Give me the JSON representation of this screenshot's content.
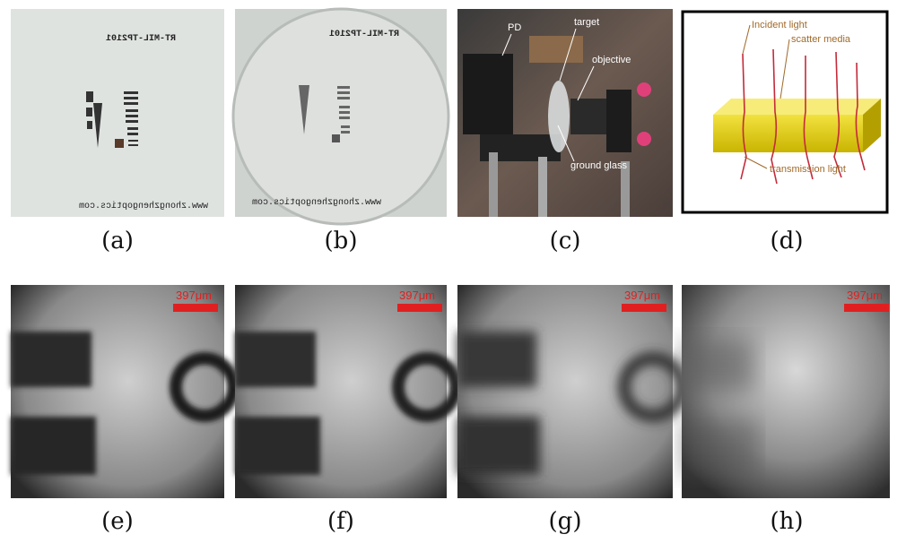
{
  "panels": [
    {
      "label": "(a)",
      "texts": [
        "RT-MIL-TP2101",
        "www.zhongzhengoptics.com"
      ]
    },
    {
      "label": "(b)",
      "texts": [
        "RT-MIL-TP2101",
        "www.zhongzhengoptics.com"
      ]
    },
    {
      "label": "(c)",
      "texts": [
        "PD",
        "target",
        "objective",
        "ground glass"
      ]
    },
    {
      "label": "(d)",
      "texts": [
        "Incident light",
        "scatter media",
        "transmission light"
      ]
    },
    {
      "label": "(e)",
      "scale_bar": "397μm"
    },
    {
      "label": "(f)",
      "scale_bar": "397μm"
    },
    {
      "label": "(g)",
      "scale_bar": "397μm"
    },
    {
      "label": "(h)",
      "scale_bar": "397μm"
    }
  ]
}
